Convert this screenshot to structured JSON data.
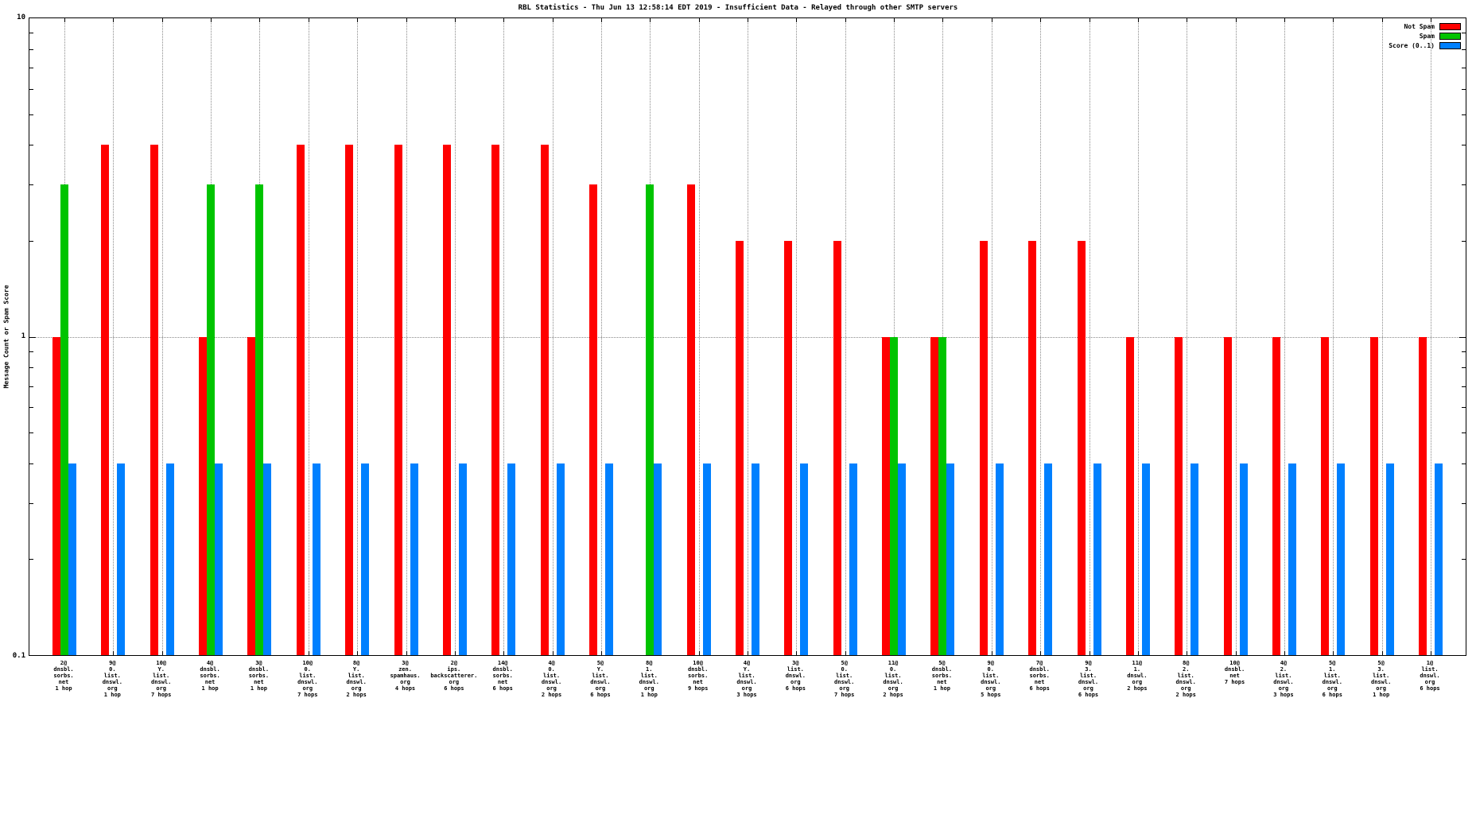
{
  "chart_data": {
    "type": "bar",
    "title": "RBL Statistics - Thu Jun 13 12:58:14 EDT 2019 - Insufficient Data - Relayed through other SMTP servers",
    "ylabel": "Message Count or Spam Score",
    "y_scale": "log",
    "ylim": [
      0.1,
      10
    ],
    "y_ticks": [
      "10",
      "1",
      "0.1"
    ],
    "grid": {
      "vertical": true,
      "horizontal_at": 1
    },
    "legend_position": "top-right-inside",
    "categories": [
      [
        "2@",
        "dnsbl.",
        "sorbs.",
        "net",
        "1 hop"
      ],
      [
        "9@",
        "0.",
        "list.",
        "dnswl.",
        "org",
        "1 hop"
      ],
      [
        "10@",
        "Y.",
        "list.",
        "dnswl.",
        "org",
        "7 hops"
      ],
      [
        "4@",
        "dnsbl.",
        "sorbs.",
        "net",
        "1 hop"
      ],
      [
        "3@",
        "dnsbl.",
        "sorbs.",
        "net",
        "1 hop"
      ],
      [
        "10@",
        "0.",
        "list.",
        "dnswl.",
        "org",
        "7 hops"
      ],
      [
        "8@",
        "Y.",
        "list.",
        "dnswl.",
        "org",
        "2 hops"
      ],
      [
        "3@",
        "zen.",
        "spamhaus.",
        "org",
        "4 hops"
      ],
      [
        "2@",
        "ips.",
        "backscatterer.",
        "org",
        "6 hops"
      ],
      [
        "14@",
        "dnsbl.",
        "sorbs.",
        "net",
        "6 hops"
      ],
      [
        "4@",
        "0.",
        "list.",
        "dnswl.",
        "org",
        "2 hops"
      ],
      [
        "5@",
        "Y.",
        "list.",
        "dnswl.",
        "org",
        "6 hops"
      ],
      [
        "8@",
        "1.",
        "list.",
        "dnswl.",
        "org",
        "1 hop"
      ],
      [
        "10@",
        "dnsbl.",
        "sorbs.",
        "net",
        "9 hops"
      ],
      [
        "4@",
        "Y.",
        "list.",
        "dnswl.",
        "org",
        "3 hops"
      ],
      [
        "3@",
        "list.",
        "dnswl.",
        "org",
        "6 hops"
      ],
      [
        "5@",
        "0.",
        "list.",
        "dnswl.",
        "org",
        "7 hops"
      ],
      [
        "11@",
        "0.",
        "list.",
        "dnswl.",
        "org",
        "2 hops"
      ],
      [
        "5@",
        "dnsbl.",
        "sorbs.",
        "net",
        "1 hop"
      ],
      [
        "9@",
        "0.",
        "list.",
        "dnswl.",
        "org",
        "5 hops"
      ],
      [
        "7@",
        "dnsbl.",
        "sorbs.",
        "net",
        "6 hops"
      ],
      [
        "9@",
        "3.",
        "list.",
        "dnswl.",
        "org",
        "6 hops"
      ],
      [
        "11@",
        "1.",
        "dnswl.",
        "org",
        "2 hops"
      ],
      [
        "8@",
        "2.",
        "list.",
        "dnswl.",
        "org",
        "2 hops"
      ],
      [
        "10@",
        "dnsbl.",
        "net",
        "7 hops"
      ],
      [
        "4@",
        "2.",
        "list.",
        "dnswl.",
        "org",
        "3 hops"
      ],
      [
        "5@",
        "1.",
        "list.",
        "dnswl.",
        "org",
        "6 hops"
      ],
      [
        "5@",
        "3.",
        "list.",
        "dnswl.",
        "org",
        "1 hop"
      ],
      [
        "1@",
        "list.",
        "dnswl.",
        "org",
        "6 hops"
      ]
    ],
    "series": [
      {
        "name": "Not Spam",
        "color": "#ff0000",
        "values": [
          1,
          4,
          4,
          1,
          1,
          4,
          4,
          4,
          4,
          4,
          4,
          3,
          null,
          3,
          2,
          2,
          2,
          1,
          1,
          2,
          2,
          2,
          1,
          1,
          1,
          1,
          1,
          1,
          1
        ]
      },
      {
        "name": "Spam",
        "color": "#00c400",
        "values": [
          3,
          null,
          null,
          3,
          3,
          null,
          null,
          null,
          null,
          null,
          null,
          null,
          3,
          null,
          null,
          null,
          null,
          1,
          1,
          null,
          null,
          null,
          null,
          null,
          null,
          null,
          null,
          null,
          null
        ]
      },
      {
        "name": "Score (0..1)",
        "color": "#0080ff",
        "values": [
          0.4,
          0.4,
          0.4,
          0.4,
          0.4,
          0.4,
          0.4,
          0.4,
          0.4,
          0.4,
          0.4,
          0.4,
          0.4,
          0.4,
          0.4,
          0.4,
          0.4,
          0.4,
          0.4,
          0.4,
          0.4,
          0.4,
          0.4,
          0.4,
          0.4,
          0.4,
          0.4,
          0.4,
          0.4
        ]
      }
    ]
  }
}
